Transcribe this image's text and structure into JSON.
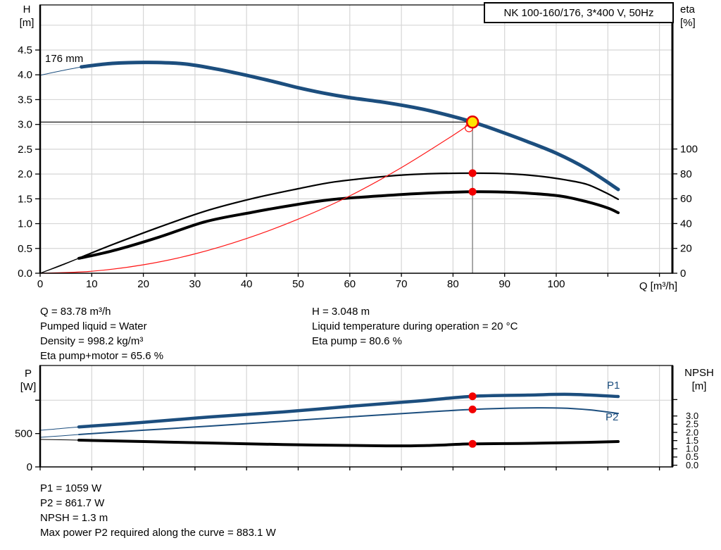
{
  "info_top": {
    "left": [
      "Q = 83.78 m³/h",
      "Pumped liquid = Water",
      "Density = 998.2 kg/m³",
      "Eta pump+motor = 65.6 %"
    ],
    "right": [
      "H = 3.048 m",
      "Liquid temperature during operation = 20 °C",
      "Eta pump = 80.6 %"
    ]
  },
  "info_bottom": [
    "P1 = 1059 W",
    "P2 = 861.7 W",
    "NPSH = 1.3 m",
    "Max power P2 required along the curve = 883.1 W"
  ],
  "colors": {
    "curve_blue": "#1c4e7e",
    "marker_red": "#f20000",
    "duty_yellow": "#ffe600",
    "duty_ring_red": "#e60000",
    "system_red": "#ff1414",
    "grid": "#d6d6d6",
    "duty_line_gray": "#8c8c8c"
  },
  "chart_data": [
    {
      "type": "line",
      "name": "qh-eta-chart",
      "title": "NK 100-160/176, 3*400 V, 50Hz",
      "xlabel": "Q [m³/h]",
      "ylabel_left": "H\n[m]",
      "ylabel_right": "eta\n[%]",
      "xlim": [
        0,
        122.5
      ],
      "x_ticks": [
        0,
        10,
        20,
        30,
        40,
        50,
        60,
        70,
        80,
        90,
        100,
        110,
        120
      ],
      "x_tick_labels": [
        "0",
        "10",
        "20",
        "30",
        "40",
        "50",
        "60",
        "70",
        "80",
        "90",
        "100",
        "",
        ""
      ],
      "ylim_left": [
        0,
        5.4
      ],
      "y_ticks_left": [
        0,
        0.5,
        1,
        1.5,
        2,
        2.5,
        3,
        3.5,
        4,
        4.5
      ],
      "y_tick_labels_left": [
        "0.0",
        "0.5",
        "1.0",
        "1.5",
        "2.0",
        "2.5",
        "3.0",
        "3.5",
        "4.0",
        "4.5"
      ],
      "ylim_right": [
        0,
        216
      ],
      "y_ticks_right": [
        0,
        20,
        40,
        60,
        80,
        100
      ],
      "y_tick_labels_right": [
        "0",
        "20",
        "40",
        "60",
        "80",
        "100"
      ],
      "grid": true,
      "legend_position": "none",
      "series": [
        {
          "name": "qh-curve-176mm",
          "label": "176 mm",
          "axis": "left",
          "color": "#1c4e7e",
          "width": 5,
          "lead": 2,
          "points": [
            [
              0,
              3.99
            ],
            [
              4,
              4.08
            ],
            [
              8,
              4.16
            ],
            [
              14,
              4.23
            ],
            [
              21,
              4.25
            ],
            [
              28,
              4.22
            ],
            [
              34,
              4.12
            ],
            [
              40,
              3.99
            ],
            [
              45,
              3.87
            ],
            [
              50,
              3.74
            ],
            [
              55,
              3.63
            ],
            [
              60,
              3.54
            ],
            [
              67,
              3.44
            ],
            [
              74,
              3.31
            ],
            [
              80,
              3.16
            ],
            [
              83.78,
              3.048
            ],
            [
              88,
              2.9
            ],
            [
              94,
              2.67
            ],
            [
              100,
              2.42
            ],
            [
              106,
              2.1
            ],
            [
              112,
              1.69
            ]
          ]
        },
        {
          "name": "eta-pump-curve",
          "axis": "right",
          "color": "#000000",
          "width": 2.2,
          "lead": 2,
          "points": [
            [
              0,
              0
            ],
            [
              4,
              6.5
            ],
            [
              8,
              13
            ],
            [
              14,
              23
            ],
            [
              23,
              37
            ],
            [
              32,
              50
            ],
            [
              41,
              60
            ],
            [
              50,
              68
            ],
            [
              57,
              73.5
            ],
            [
              67,
              78
            ],
            [
              74,
              79.9
            ],
            [
              83.78,
              80.6
            ],
            [
              91,
              80
            ],
            [
              97,
              78
            ],
            [
              102,
              75
            ],
            [
              106,
              71.5
            ],
            [
              109.5,
              65
            ],
            [
              112,
              59.5
            ]
          ]
        },
        {
          "name": "eta-pump-motor-curve",
          "axis": "right",
          "color": "#000000",
          "width": 4,
          "lead": 2,
          "points": [
            [
              0,
              0
            ],
            [
              4,
              6
            ],
            [
              7.5,
              12
            ],
            [
              14,
              18
            ],
            [
              23,
              29
            ],
            [
              32,
              41.5
            ],
            [
              41,
              49
            ],
            [
              50,
              55.5
            ],
            [
              57,
              59.5
            ],
            [
              67,
              62.6
            ],
            [
              74,
              64.3
            ],
            [
              83.78,
              65.6
            ],
            [
              90,
              65.3
            ],
            [
              95,
              64.3
            ],
            [
              101,
              62
            ],
            [
              106,
              57.5
            ],
            [
              110,
              52.5
            ],
            [
              112,
              48.7
            ]
          ]
        },
        {
          "name": "system-curve",
          "axis": "left",
          "color": "#ff1414",
          "width": 1.2,
          "lead": 0,
          "points": [
            [
              0,
              0
            ],
            [
              10,
              0.04
            ],
            [
              20,
              0.17
            ],
            [
              30,
              0.39
            ],
            [
              40,
              0.7
            ],
            [
              50,
              1.09
            ],
            [
              60,
              1.56
            ],
            [
              70,
              2.13
            ],
            [
              80,
              2.78
            ],
            [
              83.78,
              3.048
            ]
          ]
        }
      ],
      "duty_point": {
        "q": 83.78,
        "h": 3.048
      },
      "markers": [
        {
          "name": "eta-pump-point",
          "axis": "right",
          "q": 83.78,
          "v": 80.6,
          "r": 5.5,
          "fill": "#f20000",
          "interactable": "false"
        },
        {
          "name": "eta-pump-motor-point",
          "axis": "right",
          "q": 83.78,
          "v": 65.6,
          "r": 5.5,
          "fill": "#f20000",
          "interactable": "false"
        },
        {
          "name": "system-intersect-marker",
          "axis": "left",
          "q": 83.1,
          "v": 2.93,
          "r": 5.5,
          "fill": "none",
          "stroke": "#ff1414",
          "sw": 1.2,
          "interactable": "false"
        },
        {
          "name": "duty-point-marker",
          "axis": "left",
          "q": 83.78,
          "v": 3.048,
          "r": 8,
          "fill": "#ffe600",
          "stroke": "#e60000",
          "sw": 2.5,
          "interactable": "true"
        }
      ]
    },
    {
      "type": "line",
      "name": "power-npsh-chart",
      "title": "",
      "xlabel": "",
      "ylabel_left": "P\n[W]",
      "ylabel_right": "NPSH\n[m]",
      "xlim": [
        0,
        122.5
      ],
      "x_ticks": [
        0,
        10,
        20,
        30,
        40,
        50,
        60,
        70,
        80,
        90,
        100,
        110,
        120
      ],
      "x_tick_labels": [
        "",
        "",
        "",
        "",
        "",
        "",
        "",
        "",
        "",
        "",
        "",
        "",
        ""
      ],
      "ylim_left": [
        0,
        1520
      ],
      "y_ticks_left": [
        0,
        500,
        1000
      ],
      "y_tick_labels_left": [
        "0",
        "500",
        ""
      ],
      "ylim_right": [
        0,
        6.1
      ],
      "y_ticks_right": [
        0,
        0.5,
        1,
        1.5,
        2,
        2.5,
        3,
        4
      ],
      "y_tick_labels_right": [
        "0.0",
        "0.5",
        "1.0",
        "1.5",
        "2.0",
        "2.5",
        "3.0",
        ""
      ],
      "grid": true,
      "legend_position": "inline-right",
      "series": [
        {
          "name": "p1-curve",
          "label": "P1",
          "axis": "left",
          "color": "#1c4e7e",
          "width": 4.5,
          "lead": 2,
          "points": [
            [
              0,
              549
            ],
            [
              4,
              575
            ],
            [
              7.5,
              600
            ],
            [
              19.5,
              665
            ],
            [
              33,
              750
            ],
            [
              47,
              824
            ],
            [
              60,
              908
            ],
            [
              74,
              993
            ],
            [
              83.78,
              1059
            ],
            [
              94.5,
              1077
            ],
            [
              102.7,
              1088
            ],
            [
              112,
              1056
            ]
          ]
        },
        {
          "name": "p2-curve",
          "label": "P2",
          "axis": "left",
          "color": "#1c4e7e",
          "width": 2,
          "lead": 2,
          "points": [
            [
              0,
              444
            ],
            [
              4,
              465
            ],
            [
              7.5,
              486
            ],
            [
              20,
              550
            ],
            [
              33,
              612
            ],
            [
              53.5,
              718
            ],
            [
              74,
              818
            ],
            [
              83.78,
              861.7
            ],
            [
              93,
              883.1
            ],
            [
              101,
              882
            ],
            [
              106.5,
              855
            ],
            [
              112,
              802
            ]
          ]
        },
        {
          "name": "npsh-curve",
          "axis": "right",
          "color": "#000000",
          "width": 4,
          "lead": 2,
          "points": [
            [
              0,
              1.57
            ],
            [
              4,
              1.55
            ],
            [
              7.5,
              1.53
            ],
            [
              26,
              1.4
            ],
            [
              47,
              1.26
            ],
            [
              67,
              1.18
            ],
            [
              75,
              1.2
            ],
            [
              83.78,
              1.3
            ],
            [
              94,
              1.33
            ],
            [
              104,
              1.38
            ],
            [
              112,
              1.44
            ]
          ]
        }
      ],
      "markers": [
        {
          "name": "p1-point",
          "axis": "left",
          "q": 83.78,
          "v": 1059,
          "r": 5.5,
          "fill": "#f20000",
          "interactable": "false"
        },
        {
          "name": "p2-point",
          "axis": "left",
          "q": 83.78,
          "v": 861.7,
          "r": 5.5,
          "fill": "#f20000",
          "interactable": "false"
        },
        {
          "name": "npsh-point",
          "axis": "right",
          "q": 83.78,
          "v": 1.3,
          "r": 5.5,
          "fill": "#f20000",
          "interactable": "false"
        }
      ]
    }
  ]
}
